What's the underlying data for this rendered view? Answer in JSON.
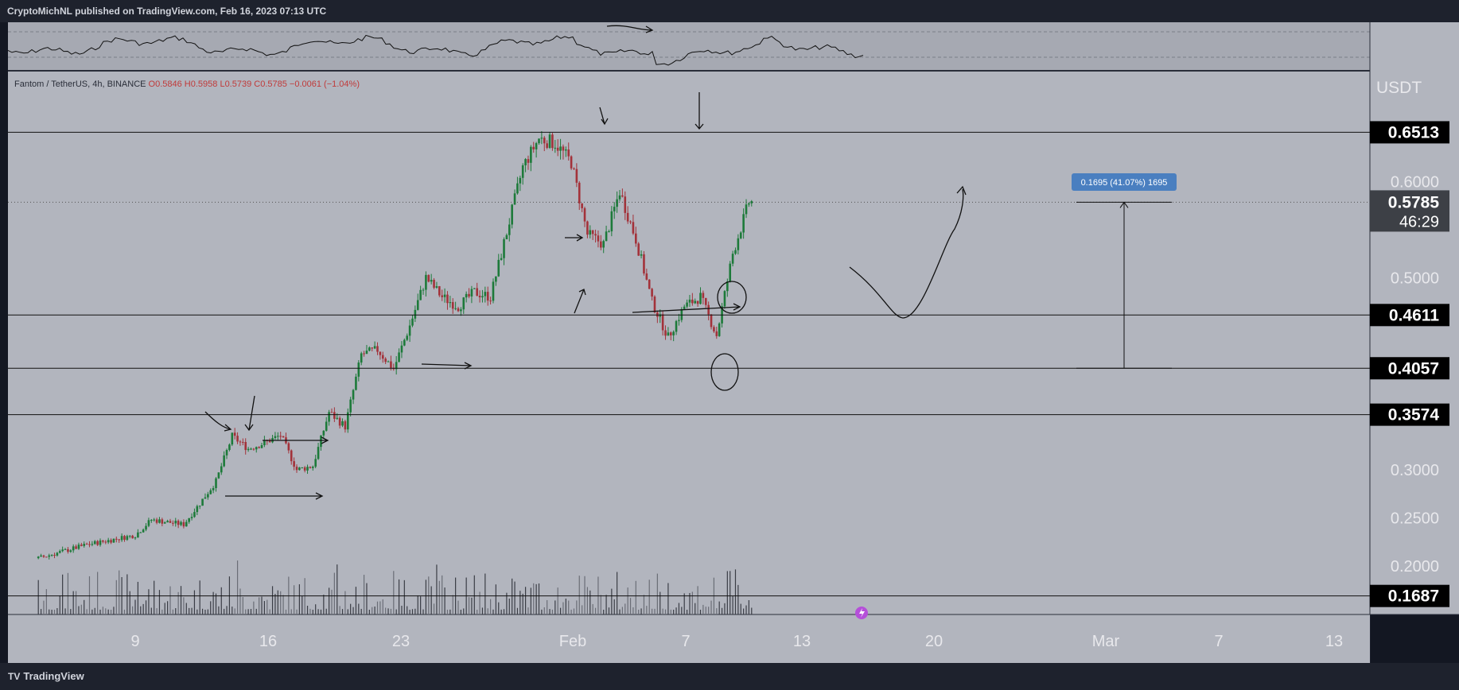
{
  "header": {
    "published_text": "CryptoMichNL published on TradingView.com, Feb 16, 2023 07:13 UTC"
  },
  "footer": {
    "brand": "TradingView"
  },
  "legend": {
    "symbol": "Fantom / TetherUS, 4h, BINANCE",
    "ohlc": "O0.5846  H0.5958  L0.5739  C0.5785  −0.0061 (−1.04%)"
  },
  "axis": {
    "currency": "USDT"
  },
  "chart_data": {
    "type": "candlestick",
    "symbol": "FTM/USDT",
    "timeframe": "4h",
    "x_labels": [
      "9",
      "16",
      "23",
      "Feb",
      "7",
      "13",
      "20",
      "Mar",
      "7",
      "13"
    ],
    "y_ticks": [
      "0.6000",
      "0.5000",
      "0.3000",
      "0.2500",
      "0.2000"
    ],
    "ylim": [
      0.145,
      0.7
    ],
    "horizontal_levels": [
      "0.6513",
      "0.4611",
      "0.4057",
      "0.3574",
      "0.1687"
    ],
    "current_price": "0.5785",
    "countdown": "46:29",
    "measure_label": "0.1695 (41.07%) 1695",
    "close_path": [
      [
        "2023-01-03",
        0.208
      ],
      [
        "2023-01-06",
        0.222
      ],
      [
        "2023-01-09",
        0.232
      ],
      [
        "2023-01-10",
        0.248
      ],
      [
        "2023-01-12",
        0.243
      ],
      [
        "2023-01-13",
        0.265
      ],
      [
        "2023-01-14",
        0.288
      ],
      [
        "2023-01-15",
        0.335
      ],
      [
        "2023-01-16",
        0.322
      ],
      [
        "2023-01-17",
        0.328
      ],
      [
        "2023-01-18",
        0.336
      ],
      [
        "2023-01-19",
        0.3
      ],
      [
        "2023-01-20",
        0.304
      ],
      [
        "2023-01-21",
        0.36
      ],
      [
        "2023-01-22",
        0.345
      ],
      [
        "2023-01-23",
        0.42
      ],
      [
        "2023-01-24",
        0.425
      ],
      [
        "2023-01-25",
        0.405
      ],
      [
        "2023-01-26",
        0.45
      ],
      [
        "2023-01-27",
        0.5
      ],
      [
        "2023-01-28",
        0.48
      ],
      [
        "2023-01-29",
        0.47
      ],
      [
        "2023-01-30",
        0.485
      ],
      [
        "2023-01-31",
        0.48
      ],
      [
        "2023-02-01",
        0.547
      ],
      [
        "2023-02-02",
        0.615
      ],
      [
        "2023-02-03",
        0.645
      ],
      [
        "2023-02-04",
        0.64
      ],
      [
        "2023-02-05",
        0.62
      ],
      [
        "2023-02-06",
        0.545
      ],
      [
        "2023-02-07",
        0.535
      ],
      [
        "2023-02-08",
        0.59
      ],
      [
        "2023-02-09",
        0.54
      ],
      [
        "2023-02-10",
        0.475
      ],
      [
        "2023-02-11",
        0.438
      ],
      [
        "2023-02-12",
        0.47
      ],
      [
        "2023-02-13",
        0.48
      ],
      [
        "2023-02-14",
        0.44
      ],
      [
        "2023-02-15",
        0.525
      ],
      [
        "2023-02-16",
        0.5785
      ]
    ]
  },
  "colors": {
    "bg": "#b2b5be",
    "up": "#1d7a3a",
    "down": "#a3323a",
    "accent": "#4a7fc0"
  }
}
